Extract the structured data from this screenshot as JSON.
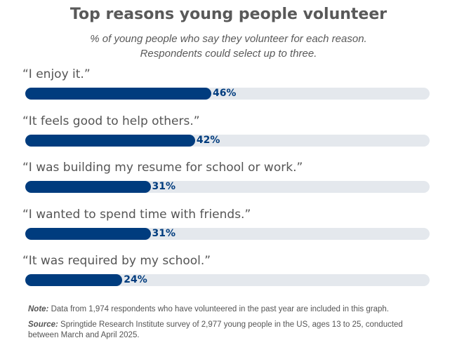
{
  "chart_data": {
    "type": "bar",
    "title": "Top reasons young people volunteer",
    "subtitle": [
      "% of young people who say they volunteer for each reason.",
      "Respondents could select up to three."
    ],
    "categories": [
      "“I enjoy it.”",
      "“It feels good to help others.”",
      "“I was building my resume for school or work.”",
      "“I wanted to spend time with friends.”",
      "“It was required by my school.”"
    ],
    "values": [
      46,
      42,
      31,
      31,
      24
    ],
    "value_labels": [
      "46%",
      "42%",
      "31%",
      "31%",
      "24%"
    ],
    "xlim": [
      0,
      100
    ],
    "bar_color": "#003c7e",
    "track_color": "#e4e8ed"
  },
  "note_label": "Note:",
  "note": "Data from 1,974 respondents who have volunteered in the past year are included in this graph.",
  "source_label": "Source:",
  "source": "Springtide Research Institute survey of 2,977 young people in the US, ages 13 to 25, conducted between March and April 2025."
}
